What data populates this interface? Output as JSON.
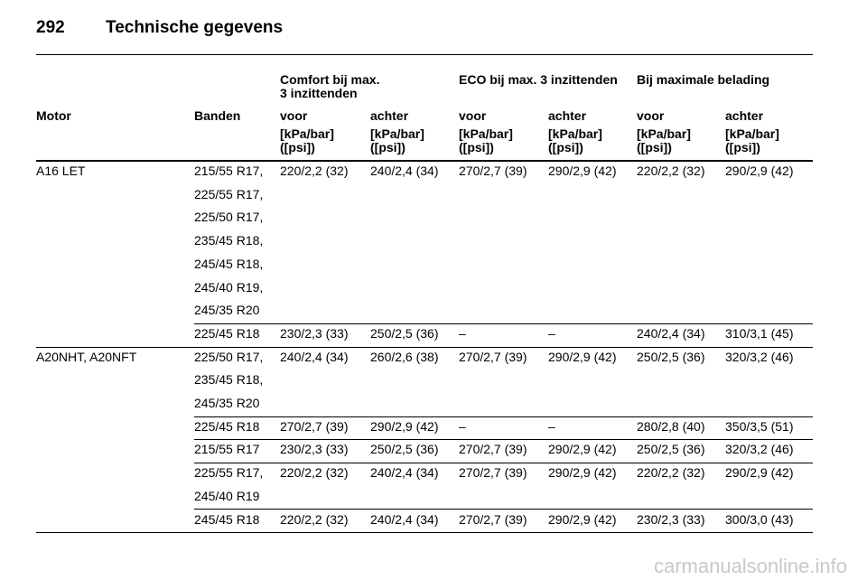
{
  "header": {
    "page_number": "292",
    "title": "Technische gegevens"
  },
  "table": {
    "group_headers": [
      {
        "column": 2,
        "lines": [
          "Comfort bij max.",
          "3 inzittenden"
        ]
      },
      {
        "column": 4,
        "lines": [
          "ECO bij max. 3 inzittenden"
        ]
      },
      {
        "column": 6,
        "lines": [
          "Bij maximale belading"
        ]
      }
    ],
    "columns": [
      "Motor",
      "Banden",
      "voor",
      "achter",
      "voor",
      "achter",
      "voor",
      "achter"
    ],
    "unit_lines": [
      "[kPa/bar]",
      "([psi])"
    ],
    "groups": [
      {
        "motor": "A16 LET",
        "rows": [
          {
            "tyres": [
              "215/55 R17,",
              "225/55 R17,",
              "225/50 R17,",
              "235/45 R18,",
              "245/45 R18,",
              "245/40 R19,",
              "245/35 R20"
            ],
            "values": [
              "220/2,2 (32)",
              "240/2,4 (34)",
              "270/2,7 (39)",
              "290/2,9 (42)",
              "220/2,2 (32)",
              "290/2,9 (42)"
            ]
          },
          {
            "tyres": [
              "225/45 R18"
            ],
            "values": [
              "230/2,3 (33)",
              "250/2,5 (36)",
              "–",
              "–",
              "240/2,4 (34)",
              "310/3,1 (45)"
            ]
          }
        ]
      },
      {
        "motor": "A20NHT, A20NFT",
        "rows": [
          {
            "tyres": [
              "225/50 R17,",
              "235/45 R18,",
              "245/35 R20"
            ],
            "values": [
              "240/2,4 (34)",
              "260/2,6 (38)",
              "270/2,7 (39)",
              "290/2,9 (42)",
              "250/2,5 (36)",
              "320/3,2 (46)"
            ]
          },
          {
            "tyres": [
              "225/45 R18"
            ],
            "values": [
              "270/2,7 (39)",
              "290/2,9 (42)",
              "–",
              "–",
              "280/2,8 (40)",
              "350/3,5 (51)"
            ]
          },
          {
            "tyres": [
              "215/55 R17"
            ],
            "values": [
              "230/2,3 (33)",
              "250/2,5 (36)",
              "270/2,7 (39)",
              "290/2,9 (42)",
              "250/2,5 (36)",
              "320/3,2 (46)"
            ]
          },
          {
            "tyres": [
              "225/55 R17,",
              "245/40 R19"
            ],
            "values": [
              "220/2,2 (32)",
              "240/2,4 (34)",
              "270/2,7 (39)",
              "290/2,9 (42)",
              "220/2,2 (32)",
              "290/2,9 (42)"
            ]
          },
          {
            "tyres": [
              "245/45 R18"
            ],
            "values": [
              "220/2,2 (32)",
              "240/2,4 (34)",
              "270/2,7 (39)",
              "290/2,9 (42)",
              "230/2,3 (33)",
              "300/3,0 (43)"
            ]
          }
        ]
      }
    ]
  },
  "watermark": "carmanualsonline.info"
}
